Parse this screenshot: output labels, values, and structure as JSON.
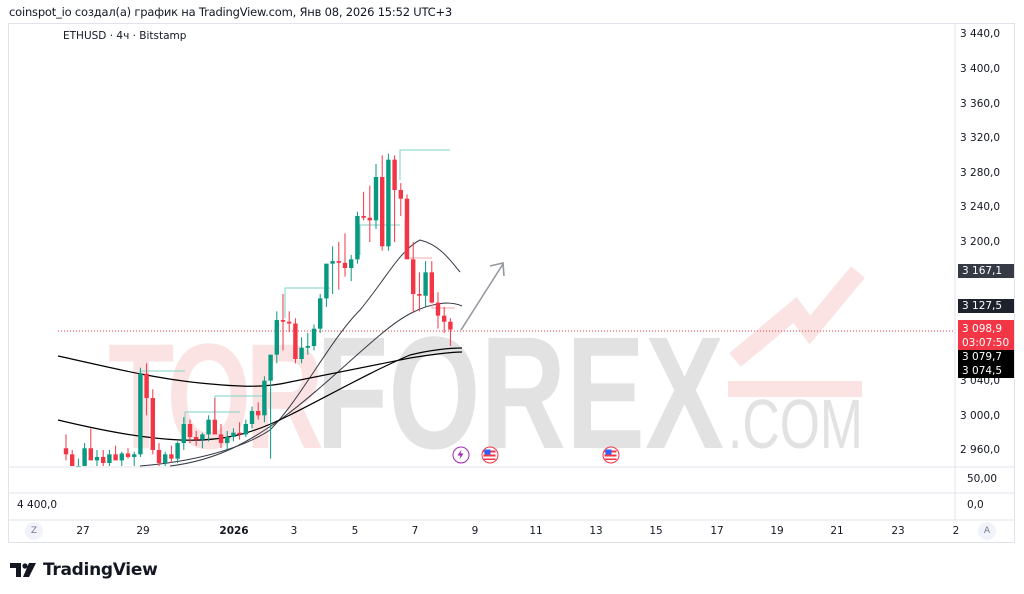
{
  "header": {
    "caption": "coinspot_io создал(а) график на TradingView.com, Янв 08, 2026 15:52 UTC+3",
    "symbol_line": "ETHUSD · 4ч · Bitstamp"
  },
  "price_axis": {
    "labels": [
      "3 440,0",
      "3 400,0",
      "3 360,0",
      "3 320,0",
      "3 280,0",
      "3 240,0",
      "3 200,0",
      "3 040,0",
      "3 000,0",
      "2 960,0"
    ],
    "tags": {
      "ma_upper": "3 167,1",
      "ma_mid": "3 127,5",
      "last_price": "3 098,9",
      "countdown": "03:07:50",
      "ma_low1": "3 079,7",
      "ma_low2": "3 074,5"
    },
    "colors": {
      "last_price": "#f23645",
      "ma_tag_dark": "#363a45",
      "ma_tag_black": "#000000"
    }
  },
  "sub_panes": {
    "pane1_value": "50,00",
    "pane2_left_value": "4 400,0",
    "pane2_right_value": "0,0"
  },
  "time_axis": {
    "ticks": [
      "27",
      "29",
      "2026",
      "3",
      "5",
      "7",
      "9",
      "11",
      "13",
      "15",
      "17",
      "19",
      "21",
      "23",
      "2"
    ],
    "zoom_button": "Z",
    "auto_button": "A"
  },
  "branding": {
    "logo_text": "TradingView",
    "watermark_main": "TORFOREX",
    "watermark_suffix": ".COM"
  },
  "events": [
    {
      "type": "lightning",
      "color": "#9c27b0"
    },
    {
      "type": "us-flag",
      "color": "#f23645"
    },
    {
      "type": "us-flag",
      "color": "#f23645"
    }
  ],
  "chart_data": {
    "type": "candlestick",
    "title": "ETHUSD · 4ч · Bitstamp",
    "xlabel": "",
    "ylabel": "",
    "ylim": [
      2960,
      3440
    ],
    "y_ticks": [
      2960,
      3000,
      3040,
      3080,
      3120,
      3160,
      3200,
      3240,
      3280,
      3320,
      3360,
      3400,
      3440
    ],
    "x_ticks": [
      "27",
      "29",
      "2026",
      "3",
      "5",
      "7",
      "9",
      "11",
      "13",
      "15",
      "17",
      "19",
      "21",
      "23",
      "2"
    ],
    "last_price": 3098.9,
    "up_color": "#089981",
    "down_color": "#f23645",
    "candles": [
      [
        2962,
        2978,
        2948,
        2955
      ],
      [
        2955,
        2960,
        2930,
        2935
      ],
      [
        2935,
        2950,
        2925,
        2940
      ],
      [
        2940,
        2968,
        2935,
        2962
      ],
      [
        2962,
        2985,
        2955,
        2948
      ],
      [
        2948,
        2960,
        2930,
        2952
      ],
      [
        2952,
        2960,
        2940,
        2945
      ],
      [
        2945,
        2960,
        2940,
        2955
      ],
      [
        2955,
        2965,
        2950,
        2948
      ],
      [
        2948,
        2958,
        2940,
        2956
      ],
      [
        2956,
        2962,
        2950,
        2952
      ],
      [
        2952,
        2958,
        2940,
        2955
      ],
      [
        2955,
        3055,
        2952,
        3048
      ],
      [
        3048,
        3060,
        3000,
        3020
      ],
      [
        3020,
        3030,
        2955,
        2960
      ],
      [
        2960,
        2968,
        2940,
        2945
      ],
      [
        2945,
        2958,
        2938,
        2955
      ],
      [
        2955,
        2965,
        2945,
        2950
      ],
      [
        2950,
        2970,
        2945,
        2968
      ],
      [
        2968,
        2998,
        2960,
        2990
      ],
      [
        2990,
        2995,
        2968,
        2975
      ],
      [
        2975,
        2982,
        2965,
        2972
      ],
      [
        2972,
        2980,
        2962,
        2978
      ],
      [
        2978,
        3000,
        2970,
        2995
      ],
      [
        2995,
        3020,
        2985,
        2978
      ],
      [
        2978,
        2990,
        2962,
        2968
      ],
      [
        2968,
        2982,
        2960,
        2975
      ],
      [
        2975,
        2985,
        2970,
        2980
      ],
      [
        2980,
        2992,
        2972,
        2978
      ],
      [
        2978,
        2995,
        2975,
        2990
      ],
      [
        2990,
        3010,
        2985,
        3005
      ],
      [
        3005,
        3015,
        2995,
        3000
      ],
      [
        3000,
        3045,
        2992,
        3040
      ],
      [
        3040,
        3050,
        2950,
        3070
      ],
      [
        3070,
        3120,
        3060,
        3110
      ],
      [
        3110,
        3140,
        3075,
        3108
      ],
      [
        3108,
        3120,
        3096,
        3106
      ],
      [
        3106,
        3112,
        3060,
        3065
      ],
      [
        3065,
        3090,
        3060,
        3078
      ],
      [
        3078,
        3095,
        3070,
        3080
      ],
      [
        3080,
        3105,
        3075,
        3100
      ],
      [
        3100,
        3140,
        3095,
        3135
      ],
      [
        3135,
        3175,
        3125,
        3175
      ],
      [
        3175,
        3195,
        3140,
        3178
      ],
      [
        3178,
        3200,
        3145,
        3176
      ],
      [
        3176,
        3210,
        3160,
        3170
      ],
      [
        3170,
        3185,
        3155,
        3180
      ],
      [
        3180,
        3235,
        3175,
        3230
      ],
      [
        3230,
        3258,
        3225,
        3228
      ],
      [
        3228,
        3265,
        3200,
        3225
      ],
      [
        3225,
        3290,
        3215,
        3275
      ],
      [
        3275,
        3300,
        3190,
        3195
      ],
      [
        3195,
        3302,
        3190,
        3295
      ],
      [
        3295,
        3300,
        3200,
        3260
      ],
      [
        3260,
        3268,
        3230,
        3250
      ],
      [
        3250,
        3255,
        3190,
        3180
      ],
      [
        3180,
        3200,
        3118,
        3140
      ],
      [
        3140,
        3165,
        3120,
        3138
      ],
      [
        3138,
        3178,
        3125,
        3165
      ],
      [
        3165,
        3178,
        3130,
        3130
      ],
      [
        3130,
        3142,
        3100,
        3115
      ],
      [
        3115,
        3125,
        3095,
        3108
      ],
      [
        3108,
        3112,
        3080,
        3098.9
      ]
    ],
    "moving_averages": [
      {
        "name": "MA short",
        "color": "#363a45",
        "last": 3167.1
      },
      {
        "name": "MA mid",
        "color": "#363a45",
        "last": 3127.5
      },
      {
        "name": "MA long 1",
        "color": "#000000",
        "last": 3079.7
      },
      {
        "name": "MA long 2",
        "color": "#000000",
        "last": 3074.5
      }
    ]
  }
}
